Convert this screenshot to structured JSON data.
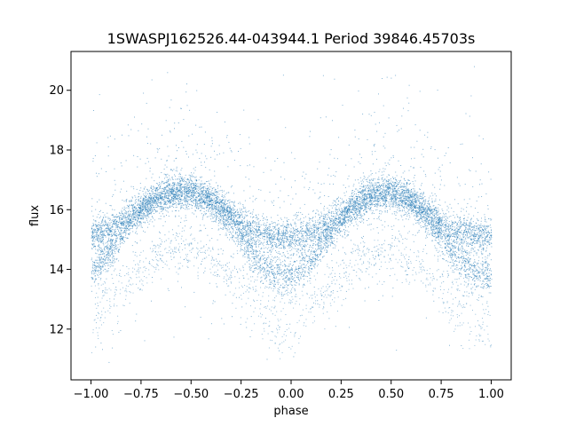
{
  "chart_data": {
    "type": "scatter",
    "title": "1SWASPJ162526.44-043944.1 Period 39846.45703s",
    "xlabel": "phase",
    "ylabel": "flux",
    "xlim": [
      -1.1,
      1.1
    ],
    "ylim": [
      10.3,
      21.3
    ],
    "xticks": [
      -1.0,
      -0.75,
      -0.5,
      -0.25,
      0.0,
      0.25,
      0.5,
      0.75,
      1.0
    ],
    "xtick_labels": [
      "−1.00",
      "−0.75",
      "−0.50",
      "−0.25",
      "0.00",
      "0.25",
      "0.50",
      "0.75",
      "1.00"
    ],
    "yticks": [
      12,
      14,
      16,
      18,
      20
    ],
    "ytick_labels": [
      "12",
      "14",
      "16",
      "18",
      "20"
    ],
    "grid": false,
    "marker_color": "#1f77b4",
    "series": [
      {
        "description_points": "phase-folded light curve, upper branch",
        "x": [
          -1.0,
          -0.9,
          -0.8,
          -0.7,
          -0.6,
          -0.5,
          -0.4,
          -0.3,
          -0.2,
          -0.1,
          0.0,
          0.1,
          0.2,
          0.3,
          0.4,
          0.5,
          0.6,
          0.7,
          0.8,
          0.9,
          1.0
        ],
        "y": [
          15.2,
          15.3,
          15.8,
          16.3,
          16.6,
          16.6,
          16.3,
          15.8,
          15.3,
          15.1,
          15.1,
          15.2,
          15.5,
          16.1,
          16.5,
          16.6,
          16.3,
          15.8,
          15.3,
          15.2,
          15.1
        ]
      },
      {
        "x": [
          -1.0,
          -0.9,
          -0.8,
          -0.7,
          -0.6,
          -0.5,
          -0.4,
          -0.3,
          -0.2,
          -0.1,
          0.0,
          0.1,
          0.2,
          0.3,
          0.4,
          0.5,
          0.6,
          0.7,
          0.8,
          0.9,
          1.0
        ],
        "y": [
          13.9,
          14.6,
          15.7,
          16.3,
          16.6,
          16.6,
          16.3,
          15.6,
          14.5,
          13.9,
          13.8,
          14.3,
          15.3,
          16.1,
          16.5,
          16.6,
          16.3,
          15.6,
          14.6,
          14.0,
          13.8
        ]
      }
    ]
  }
}
